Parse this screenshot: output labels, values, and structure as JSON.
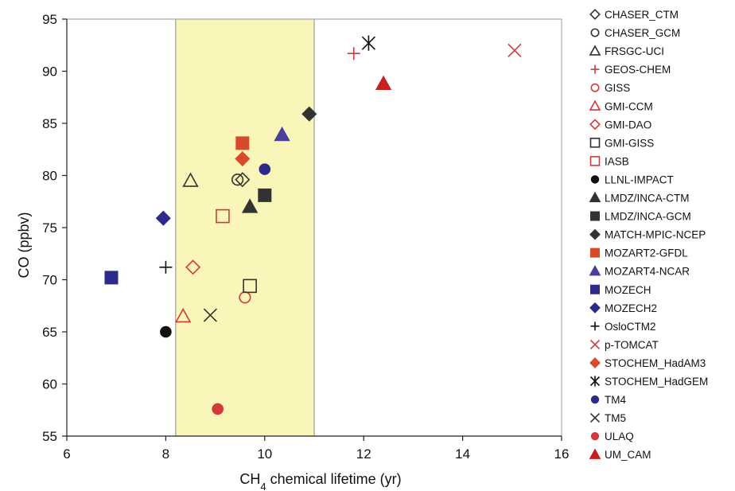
{
  "chart_data": {
    "type": "scatter",
    "title": "",
    "xlabel_main": "CH",
    "xlabel_sub": "4",
    "xlabel_rest": " chemical lifetime (yr)",
    "ylabel": "CO (ppbv)",
    "xlim": [
      6,
      16
    ],
    "ylim": [
      55,
      95
    ],
    "xticks": [
      "6",
      "8",
      "10",
      "12",
      "14",
      "16"
    ],
    "yticks": [
      "55",
      "60",
      "65",
      "70",
      "75",
      "80",
      "85",
      "90",
      "95"
    ],
    "grid": false,
    "legend_position": "right",
    "shaded_band": {
      "x": [
        8.2,
        11.0
      ],
      "color": "#faf5b8"
    },
    "series": [
      {
        "name": "CHASER_CTM",
        "marker": "diamond-open",
        "color": "#333333",
        "x": 9.55,
        "y": 79.6
      },
      {
        "name": "CHASER_GCM",
        "marker": "circle-open",
        "color": "#333333",
        "x": 9.45,
        "y": 79.6
      },
      {
        "name": "FRSGC-UCI",
        "marker": "triangle-open",
        "color": "#333333",
        "x": 8.5,
        "y": 79.5
      },
      {
        "name": "GEOS-CHEM",
        "marker": "plus",
        "color": "#d23a3a",
        "x": 11.8,
        "y": 91.7
      },
      {
        "name": "GISS",
        "marker": "circle-open",
        "color": "#d23a3a",
        "x": 9.6,
        "y": 68.3
      },
      {
        "name": "GMI-CCM",
        "marker": "triangle-open",
        "color": "#d23a3a",
        "x": 8.35,
        "y": 66.5
      },
      {
        "name": "GMI-DAO",
        "marker": "diamond-open",
        "color": "#d23a3a",
        "x": 8.55,
        "y": 71.2
      },
      {
        "name": "GMI-GISS",
        "marker": "square-open",
        "color": "#333333",
        "x": 9.7,
        "y": 69.4
      },
      {
        "name": "IASB",
        "marker": "square-open",
        "color": "#d23a3a",
        "x": 9.15,
        "y": 76.1
      },
      {
        "name": "LLNL-IMPACT",
        "marker": "circle",
        "color": "#111111",
        "x": 8.0,
        "y": 65.0
      },
      {
        "name": "LMDZ/INCA-CTM",
        "marker": "triangle",
        "color": "#333333",
        "x": 9.7,
        "y": 77.0
      },
      {
        "name": "LMDZ/INCA-GCM",
        "marker": "square",
        "color": "#333333",
        "x": 10.0,
        "y": 78.1
      },
      {
        "name": "MATCH-MPIC-NCEP",
        "marker": "diamond",
        "color": "#333333",
        "x": 10.9,
        "y": 85.9
      },
      {
        "name": "MOZART2-GFDL",
        "marker": "square",
        "color": "#d94a2a",
        "x": 9.55,
        "y": 83.1
      },
      {
        "name": "MOZART4-NCAR",
        "marker": "triangle",
        "color": "#4a3f9a",
        "x": 10.35,
        "y": 83.9
      },
      {
        "name": "MOZECH",
        "marker": "square",
        "color": "#2d2b8a",
        "x": 6.9,
        "y": 70.2
      },
      {
        "name": "MOZECH2",
        "marker": "diamond",
        "color": "#2d2b8a",
        "x": 7.95,
        "y": 75.9
      },
      {
        "name": "OsloCTM2",
        "marker": "plus",
        "color": "#111111",
        "x": 8.0,
        "y": 71.2
      },
      {
        "name": "p-TOMCAT",
        "marker": "x",
        "color": "#d23a3a",
        "x": 15.05,
        "y": 92.0
      },
      {
        "name": "STOCHEM_HadAM3",
        "marker": "diamond",
        "color": "#d94a2a",
        "x": 9.55,
        "y": 81.6
      },
      {
        "name": "STOCHEM_HadGEM",
        "marker": "asterisk",
        "color": "#111111",
        "x": 12.1,
        "y": 92.7
      },
      {
        "name": "TM4",
        "marker": "circle",
        "color": "#2d2b8a",
        "x": 10.0,
        "y": 80.6
      },
      {
        "name": "TM5",
        "marker": "x",
        "color": "#333333",
        "x": 8.9,
        "y": 66.6
      },
      {
        "name": "ULAQ",
        "marker": "circle",
        "color": "#d23a3a",
        "x": 9.05,
        "y": 57.6
      },
      {
        "name": "UM_CAM",
        "marker": "triangle",
        "color": "#c8201e",
        "x": 12.4,
        "y": 88.8
      }
    ]
  }
}
